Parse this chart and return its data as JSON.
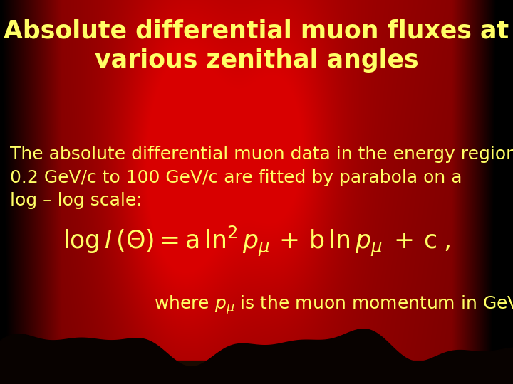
{
  "title_line1": "Absolute differential muon fluxes at",
  "title_line2": "various zenithal angles",
  "title_color": "#FFFF66",
  "title_fontsize": 25,
  "body_text_line1": "The absolute differential muon data in the energy region",
  "body_text_line2": "0.2 GeV/c to 100 GeV/c are fitted by parabola on a",
  "body_text_line3": "log – log scale:",
  "body_color": "#FFFF66",
  "body_fontsize": 18,
  "formula_color": "#FFFF66",
  "formula_fontsize": 25,
  "where_color": "#FFFF66",
  "where_fontsize": 18,
  "fig_width": 7.2,
  "fig_height": 5.4
}
